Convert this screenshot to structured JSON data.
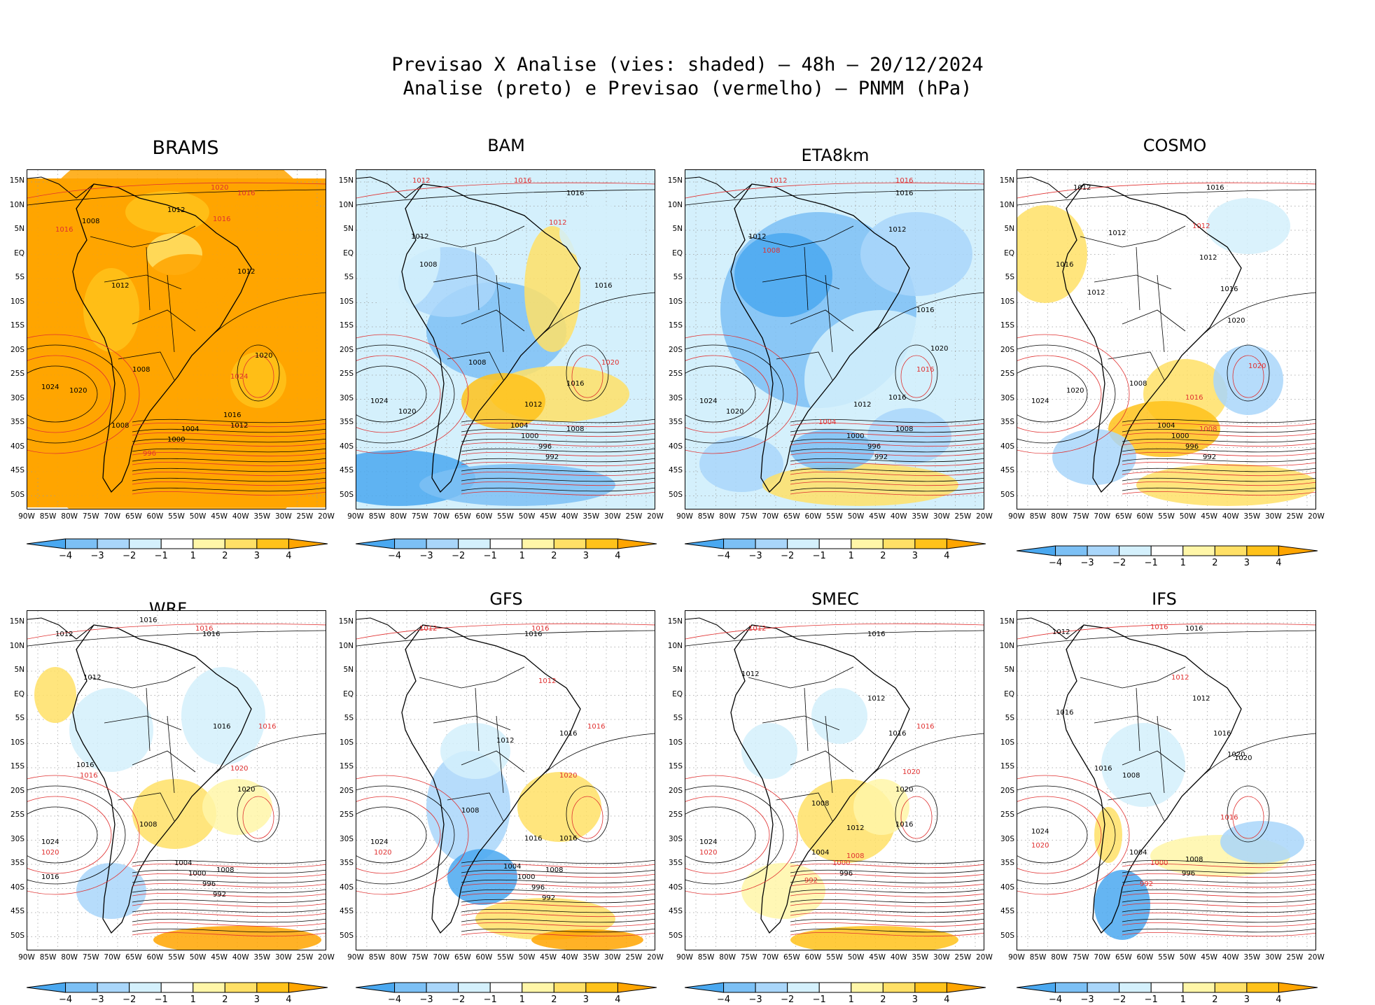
{
  "header": {
    "line1": "Previsao X Analise (vies: shaded) – 48h – 20/12/2024",
    "line2": "Analise (preto) e Previsao (vermelho) – PNMM (hPa)"
  },
  "axes": {
    "lat_labels": [
      "15N",
      "10N",
      "5N",
      "EQ",
      "5S",
      "10S",
      "15S",
      "20S",
      "25S",
      "30S",
      "35S",
      "40S",
      "45S",
      "50S"
    ],
    "lon_labels": [
      "90W",
      "85W",
      "80W",
      "75W",
      "70W",
      "65W",
      "60W",
      "55W",
      "50W",
      "45W",
      "40W",
      "35W",
      "30W",
      "25W",
      "20W"
    ]
  },
  "colorbar": {
    "labels": [
      "−4",
      "−3",
      "−2",
      "−1",
      "1",
      "2",
      "3",
      "4"
    ],
    "colors": [
      "#4aa8f0",
      "#7cc0f5",
      "#a9d6fa",
      "#d4f0fc",
      "#ffffff",
      "#fff6a8",
      "#ffe066",
      "#ffc21a",
      "#ffa500"
    ]
  },
  "contour_colors": {
    "analysis": "#000000",
    "forecast": "#e03030"
  },
  "panels": [
    {
      "name": "BRAMS",
      "bias": "brams",
      "labels": [
        [
          "1016",
          300,
          28,
          "r"
        ],
        [
          "1020",
          262,
          20,
          "r"
        ],
        [
          "1012",
          200,
          52,
          "k"
        ],
        [
          "1008",
          78,
          68,
          "k"
        ],
        [
          "1016",
          40,
          80,
          "r"
        ],
        [
          "1012",
          120,
          160,
          "k"
        ],
        [
          "1008",
          150,
          280,
          "k"
        ],
        [
          "1016",
          265,
          65,
          "r"
        ],
        [
          "1012",
          300,
          140,
          "k"
        ],
        [
          "1024",
          290,
          290,
          "r"
        ],
        [
          "1020",
          325,
          260,
          "k"
        ],
        [
          "1020",
          60,
          310,
          "k"
        ],
        [
          "1024",
          20,
          305,
          "k"
        ],
        [
          "1008",
          120,
          360,
          "k"
        ],
        [
          "1000",
          200,
          380,
          "k"
        ],
        [
          "1004",
          220,
          365,
          "k"
        ],
        [
          "996",
          165,
          400,
          "r"
        ],
        [
          "1016",
          280,
          345,
          "k"
        ],
        [
          "1012",
          290,
          360,
          "k"
        ]
      ]
    },
    {
      "name": "BAM",
      "bias": "bam",
      "labels": [
        [
          "1012",
          80,
          10,
          "r"
        ],
        [
          "1016",
          225,
          10,
          "r"
        ],
        [
          "1016",
          300,
          28,
          "k"
        ],
        [
          "1012",
          275,
          70,
          "r"
        ],
        [
          "1012",
          78,
          90,
          "k"
        ],
        [
          "1008",
          90,
          130,
          "k"
        ],
        [
          "1016",
          340,
          160,
          "k"
        ],
        [
          "1008",
          160,
          270,
          "k"
        ],
        [
          "1016",
          300,
          300,
          "k"
        ],
        [
          "1020",
          350,
          270,
          "r"
        ],
        [
          "1024",
          20,
          325,
          "k"
        ],
        [
          "1020",
          60,
          340,
          "k"
        ],
        [
          "1012",
          240,
          330,
          "k"
        ],
        [
          "1004",
          220,
          360,
          "k"
        ],
        [
          "1000",
          235,
          375,
          "k"
        ],
        [
          "996",
          260,
          390,
          "k"
        ],
        [
          "992",
          270,
          405,
          "k"
        ],
        [
          "1008",
          300,
          365,
          "k"
        ]
      ]
    },
    {
      "name": "ETA8km",
      "bias": "eta",
      "labels": [
        [
          "1012",
          120,
          10,
          "r"
        ],
        [
          "1016",
          300,
          10,
          "r"
        ],
        [
          "1016",
          300,
          28,
          "k"
        ],
        [
          "1012",
          290,
          80,
          "k"
        ],
        [
          "1012",
          90,
          90,
          "k"
        ],
        [
          "1008",
          110,
          110,
          "r"
        ],
        [
          "1016",
          330,
          195,
          "k"
        ],
        [
          "1020",
          350,
          250,
          "k"
        ],
        [
          "1016",
          330,
          280,
          "r"
        ],
        [
          "1024",
          20,
          325,
          "k"
        ],
        [
          "1020",
          58,
          340,
          "k"
        ],
        [
          "1012",
          240,
          330,
          "k"
        ],
        [
          "1004",
          190,
          355,
          "r"
        ],
        [
          "1000",
          230,
          375,
          "k"
        ],
        [
          "996",
          260,
          390,
          "k"
        ],
        [
          "992",
          270,
          405,
          "k"
        ],
        [
          "1008",
          300,
          365,
          "k"
        ],
        [
          "1016",
          290,
          320,
          "k"
        ]
      ]
    },
    {
      "name": "COSMO",
      "bias": "cosmo",
      "labels": [
        [
          "1012",
          80,
          20,
          "k"
        ],
        [
          "1016",
          270,
          20,
          "k"
        ],
        [
          "1012",
          250,
          75,
          "r"
        ],
        [
          "1012",
          130,
          85,
          "k"
        ],
        [
          "1012",
          260,
          120,
          "k"
        ],
        [
          "1016",
          290,
          165,
          "k"
        ],
        [
          "1020",
          300,
          210,
          "k"
        ],
        [
          "1016",
          55,
          130,
          "k"
        ],
        [
          "1012",
          100,
          170,
          "k"
        ],
        [
          "1008",
          160,
          300,
          "k"
        ],
        [
          "1024",
          20,
          325,
          "k"
        ],
        [
          "1020",
          70,
          310,
          "k"
        ],
        [
          "1004",
          200,
          360,
          "k"
        ],
        [
          "1000",
          220,
          375,
          "k"
        ],
        [
          "996",
          240,
          390,
          "k"
        ],
        [
          "992",
          265,
          405,
          "k"
        ],
        [
          "1008",
          260,
          365,
          "r"
        ],
        [
          "1020",
          330,
          275,
          "r"
        ],
        [
          "1016",
          240,
          320,
          "r"
        ]
      ]
    },
    {
      "name": "WRF",
      "bias": "wrf",
      "labels": [
        [
          "1016",
          160,
          8,
          "k"
        ],
        [
          "1016",
          250,
          28,
          "k"
        ],
        [
          "1016",
          240,
          20,
          "r"
        ],
        [
          "1012",
          40,
          28,
          "k"
        ],
        [
          "1012",
          80,
          90,
          "k"
        ],
        [
          "1016",
          265,
          160,
          "k"
        ],
        [
          "1016",
          330,
          160,
          "r"
        ],
        [
          "1020",
          300,
          250,
          "k"
        ],
        [
          "1020",
          290,
          220,
          "r"
        ],
        [
          "1016",
          70,
          215,
          "k"
        ],
        [
          "1016",
          75,
          230,
          "r"
        ],
        [
          "1008",
          160,
          300,
          "k"
        ],
        [
          "1024",
          20,
          325,
          "k"
        ],
        [
          "1020",
          20,
          340,
          "r"
        ],
        [
          "1004",
          210,
          355,
          "k"
        ],
        [
          "1000",
          230,
          370,
          "k"
        ],
        [
          "996",
          250,
          385,
          "k"
        ],
        [
          "992",
          265,
          400,
          "k"
        ],
        [
          "1008",
          270,
          365,
          "k"
        ],
        [
          "1016",
          20,
          375,
          "k"
        ]
      ]
    },
    {
      "name": "GFS",
      "bias": "gfs",
      "labels": [
        [
          "1012",
          90,
          20,
          "r"
        ],
        [
          "1016",
          240,
          28,
          "k"
        ],
        [
          "1016",
          250,
          20,
          "r"
        ],
        [
          "1012",
          260,
          95,
          "r"
        ],
        [
          "1016",
          290,
          170,
          "k"
        ],
        [
          "1016",
          330,
          160,
          "r"
        ],
        [
          "1020",
          290,
          230,
          "r"
        ],
        [
          "1012",
          200,
          180,
          "k"
        ],
        [
          "1008",
          150,
          280,
          "k"
        ],
        [
          "1024",
          20,
          325,
          "k"
        ],
        [
          "1020",
          25,
          340,
          "r"
        ],
        [
          "1016",
          240,
          320,
          "k"
        ],
        [
          "1016",
          290,
          320,
          "k"
        ],
        [
          "1004",
          210,
          360,
          "k"
        ],
        [
          "1000",
          230,
          375,
          "k"
        ],
        [
          "996",
          250,
          390,
          "k"
        ],
        [
          "992",
          265,
          405,
          "k"
        ],
        [
          "1008",
          270,
          365,
          "k"
        ]
      ]
    },
    {
      "name": "SMEC",
      "bias": "smec",
      "labels": [
        [
          "1012",
          90,
          20,
          "r"
        ],
        [
          "1016",
          260,
          28,
          "k"
        ],
        [
          "1012",
          80,
          85,
          "k"
        ],
        [
          "1016",
          290,
          170,
          "k"
        ],
        [
          "1016",
          330,
          160,
          "r"
        ],
        [
          "1020",
          300,
          250,
          "k"
        ],
        [
          "1020",
          310,
          225,
          "r"
        ],
        [
          "1012",
          260,
          120,
          "k"
        ],
        [
          "1008",
          180,
          270,
          "k"
        ],
        [
          "1024",
          20,
          325,
          "k"
        ],
        [
          "1020",
          20,
          340,
          "r"
        ],
        [
          "1016",
          300,
          300,
          "k"
        ],
        [
          "1012",
          230,
          305,
          "k"
        ],
        [
          "1004",
          180,
          340,
          "k"
        ],
        [
          "1000",
          210,
          355,
          "r"
        ],
        [
          "996",
          220,
          370,
          "k"
        ],
        [
          "992",
          170,
          380,
          "r"
        ],
        [
          "1008",
          230,
          345,
          "r"
        ]
      ]
    },
    {
      "name": "IFS",
      "bias": "ifs",
      "labels": [
        [
          "1012",
          50,
          25,
          "k"
        ],
        [
          "1016",
          190,
          18,
          "r"
        ],
        [
          "1016",
          240,
          20,
          "k"
        ],
        [
          "1012",
          220,
          90,
          "r"
        ],
        [
          "1012",
          250,
          120,
          "k"
        ],
        [
          "1016",
          280,
          170,
          "k"
        ],
        [
          "1020",
          300,
          200,
          "k"
        ],
        [
          "1016",
          55,
          140,
          "k"
        ],
        [
          "1016",
          110,
          220,
          "k"
        ],
        [
          "1008",
          150,
          230,
          "k"
        ],
        [
          "1024",
          20,
          310,
          "k"
        ],
        [
          "1020",
          20,
          330,
          "r"
        ],
        [
          "1016",
          290,
          290,
          "r"
        ],
        [
          "1004",
          160,
          340,
          "k"
        ],
        [
          "1008",
          240,
          350,
          "k"
        ],
        [
          "1000",
          190,
          355,
          "r"
        ],
        [
          "996",
          235,
          370,
          "k"
        ],
        [
          "992",
          175,
          385,
          "r"
        ],
        [
          "1020",
          310,
          205,
          "k"
        ]
      ]
    }
  ]
}
